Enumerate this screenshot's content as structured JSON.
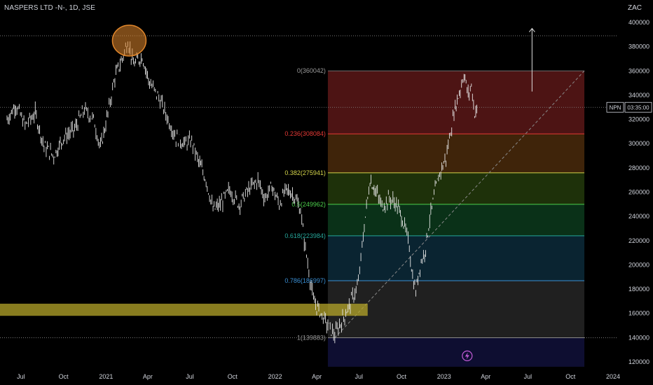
{
  "header": {
    "symbol_title": "NASPERS LTD -N-, 1D, JSE",
    "currency": "ZAC"
  },
  "price_tag": {
    "ticker": "NPN",
    "countdown": "03:35:00",
    "price": 330000
  },
  "colors": {
    "price_line": "#e8e8e8",
    "highlight_zone": "#b5a62a",
    "circle": "#e0862b",
    "fib_trend": "#888888"
  },
  "chart_data": {
    "type": "line",
    "title": "NASPERS LTD -N-, 1D, JSE",
    "ylabel": "ZAC",
    "y_ticks": [
      120000,
      140000,
      160000,
      180000,
      200000,
      220000,
      240000,
      260000,
      280000,
      300000,
      320000,
      340000,
      360000,
      380000,
      400000
    ],
    "ylim": [
      115000,
      405000
    ],
    "x_ticks": [
      "Jul",
      "Oct",
      "2021",
      "Apr",
      "Jul",
      "Oct",
      "2022",
      "Apr",
      "Jul",
      "Oct",
      "2023",
      "Apr",
      "Jul",
      "Oct",
      "2024"
    ],
    "x_tick_dates": [
      "2020-07-01",
      "2020-10-01",
      "2021-01-01",
      "2021-04-01",
      "2021-07-01",
      "2021-10-01",
      "2022-01-01",
      "2022-04-01",
      "2022-07-01",
      "2022-10-01",
      "2023-01-01",
      "2023-04-01",
      "2023-07-01",
      "2023-10-01",
      "2024-01-01"
    ],
    "series": [
      {
        "values": [
          [
            "2020-06-01",
            320000
          ],
          [
            "2020-06-20",
            332000
          ],
          [
            "2020-07-10",
            315000
          ],
          [
            "2020-08-01",
            325000
          ],
          [
            "2020-08-20",
            298000
          ],
          [
            "2020-09-10",
            290000
          ],
          [
            "2020-10-01",
            305000
          ],
          [
            "2020-10-25",
            312000
          ],
          [
            "2020-11-15",
            328000
          ],
          [
            "2020-12-05",
            320000
          ],
          [
            "2020-12-20",
            296000
          ],
          [
            "2021-01-05",
            325000
          ],
          [
            "2021-01-20",
            355000
          ],
          [
            "2021-02-05",
            370000
          ],
          [
            "2021-02-17",
            385000
          ],
          [
            "2021-03-01",
            365000
          ],
          [
            "2021-03-20",
            372000
          ],
          [
            "2021-04-05",
            350000
          ],
          [
            "2021-04-25",
            338000
          ],
          [
            "2021-05-15",
            320000
          ],
          [
            "2021-06-01",
            305000
          ],
          [
            "2021-06-20",
            300000
          ],
          [
            "2021-07-05",
            302000
          ],
          [
            "2021-07-20",
            285000
          ],
          [
            "2021-08-05",
            270000
          ],
          [
            "2021-08-20",
            245000
          ],
          [
            "2021-09-05",
            250000
          ],
          [
            "2021-09-25",
            262000
          ],
          [
            "2021-10-15",
            250000
          ],
          [
            "2021-11-05",
            262000
          ],
          [
            "2021-11-25",
            270000
          ],
          [
            "2021-12-10",
            255000
          ],
          [
            "2021-12-25",
            265000
          ],
          [
            "2022-01-10",
            250000
          ],
          [
            "2022-01-25",
            262000
          ],
          [
            "2022-02-10",
            258000
          ],
          [
            "2022-02-25",
            245000
          ],
          [
            "2022-03-05",
            220000
          ],
          [
            "2022-03-15",
            195000
          ],
          [
            "2022-03-25",
            170000
          ],
          [
            "2022-04-10",
            160000
          ],
          [
            "2022-04-25",
            150000
          ],
          [
            "2022-05-10",
            142000
          ],
          [
            "2022-05-20",
            150000
          ],
          [
            "2022-06-05",
            162000
          ],
          [
            "2022-06-20",
            175000
          ],
          [
            "2022-06-30",
            185000
          ],
          [
            "2022-07-08",
            215000
          ],
          [
            "2022-07-15",
            240000
          ],
          [
            "2022-07-25",
            270000
          ],
          [
            "2022-08-05",
            262000
          ],
          [
            "2022-08-20",
            248000
          ],
          [
            "2022-09-05",
            255000
          ],
          [
            "2022-09-20",
            250000
          ],
          [
            "2022-10-01",
            240000
          ],
          [
            "2022-10-10",
            228000
          ],
          [
            "2022-10-18",
            215000
          ],
          [
            "2022-10-25",
            190000
          ],
          [
            "2022-11-01",
            178000
          ],
          [
            "2022-11-10",
            200000
          ],
          [
            "2022-11-20",
            210000
          ],
          [
            "2022-12-01",
            238000
          ],
          [
            "2022-12-15",
            265000
          ],
          [
            "2022-12-25",
            278000
          ],
          [
            "2023-01-05",
            288000
          ],
          [
            "2023-01-15",
            310000
          ],
          [
            "2023-01-25",
            330000
          ],
          [
            "2023-02-05",
            345000
          ],
          [
            "2023-02-13",
            358000
          ],
          [
            "2023-02-22",
            340000
          ],
          [
            "2023-03-01",
            348000
          ],
          [
            "2023-03-08",
            325000
          ],
          [
            "2023-03-15",
            330000
          ]
        ]
      }
    ],
    "horizontal_dotted_lines": [
      389000,
      330000,
      139883
    ],
    "fibonacci_retracement": {
      "start_date": "2022-04-25",
      "end_date": "2023-10-31",
      "trend_start": [
        "2022-05-10",
        139883
      ],
      "trend_end": [
        "2023-10-31",
        360042
      ],
      "levels": [
        {
          "label": "0(360042)",
          "price": 360042,
          "line_color": "#6b6b6b",
          "fill": "#5a1818",
          "label_color": "#9a9a9a"
        },
        {
          "label": "0.236(308084)",
          "price": 308084,
          "line_color": "#e53935",
          "fill": "#4a2a0c",
          "label_color": "#e53935"
        },
        {
          "label": "0.382(275941)",
          "price": 275941,
          "line_color": "#d4d44a",
          "fill": "#233a0c",
          "label_color": "#d4d44a"
        },
        {
          "label": "0.5(249962)",
          "price": 249962,
          "line_color": "#4cd04c",
          "fill": "#0c3a1c",
          "label_color": "#4cd04c"
        },
        {
          "label": "0.618(223984)",
          "price": 223984,
          "line_color": "#26a69a",
          "fill": "#0c2a3a",
          "label_color": "#26a69a"
        },
        {
          "label": "0.786(186997)",
          "price": 186997,
          "line_color": "#3a8fd4",
          "fill": "#262626",
          "label_color": "#3a8fd4"
        },
        {
          "label": "1(139883)",
          "price": 139883,
          "line_color": "#8a8a8a",
          "fill": "#10103a",
          "label_color": "#9a9a9a"
        }
      ],
      "below_zone_bottom": 116000
    },
    "highlight_zone": {
      "start_date": "2020-06-01",
      "end_date": "2022-07-20",
      "top": 168000,
      "bottom": 158000
    },
    "circle_marker": {
      "date": "2021-02-20",
      "price": 385000
    },
    "up_arrow": {
      "date": "2023-07-10",
      "from": 343000,
      "to": 395000
    },
    "event_marker": {
      "date": "2023-02-20",
      "icon": "lightning-icon",
      "price": 125000
    }
  }
}
